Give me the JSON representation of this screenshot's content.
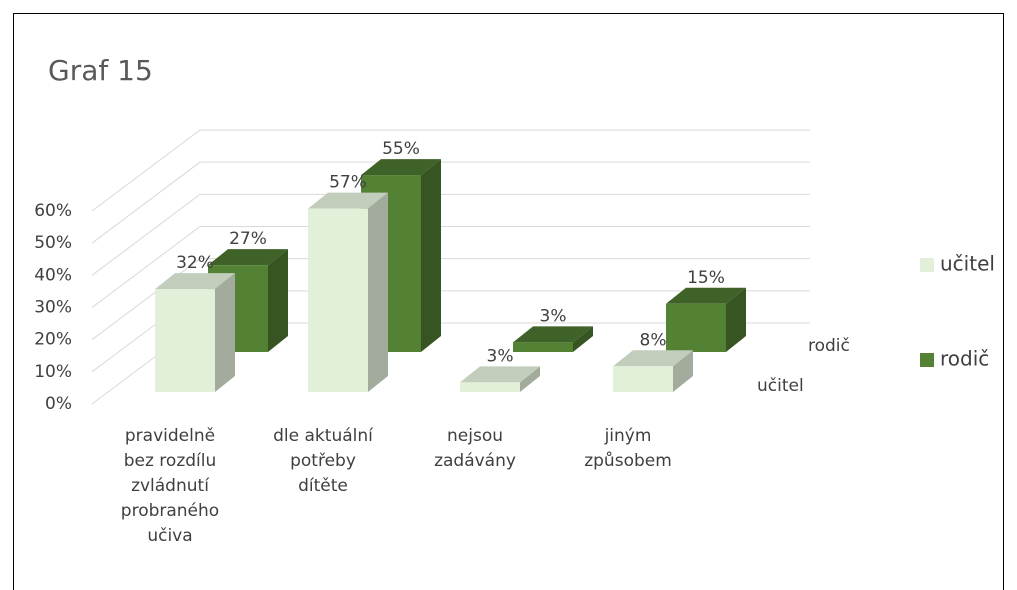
{
  "chart_data": {
    "type": "bar3d",
    "title": "Graf 15",
    "categories": [
      "pravidelně bez rozdílu zvládnutí probraného učiva",
      "dle aktuální potřeby dítěte",
      "nejsou zadávány",
      "jiným způsobem"
    ],
    "series": [
      {
        "name": "učitel",
        "color": "#e2efd9",
        "values": [
          32,
          57,
          3,
          8
        ],
        "value_labels": [
          "32%",
          "57%",
          "3%",
          "8%"
        ]
      },
      {
        "name": "rodič",
        "color": "#548235",
        "values": [
          27,
          55,
          3,
          15
        ],
        "value_labels": [
          "27%",
          "55%",
          "3%",
          "15%"
        ]
      }
    ],
    "ylim": [
      0,
      60
    ],
    "yticks": [
      {
        "value": 0,
        "label": "0%"
      },
      {
        "value": 10,
        "label": "10%"
      },
      {
        "value": 20,
        "label": "20%"
      },
      {
        "value": 30,
        "label": "30%"
      },
      {
        "value": 40,
        "label": "40%"
      },
      {
        "value": 50,
        "label": "50%"
      },
      {
        "value": 60,
        "label": "60%"
      }
    ],
    "grid": true,
    "legend": "right"
  }
}
